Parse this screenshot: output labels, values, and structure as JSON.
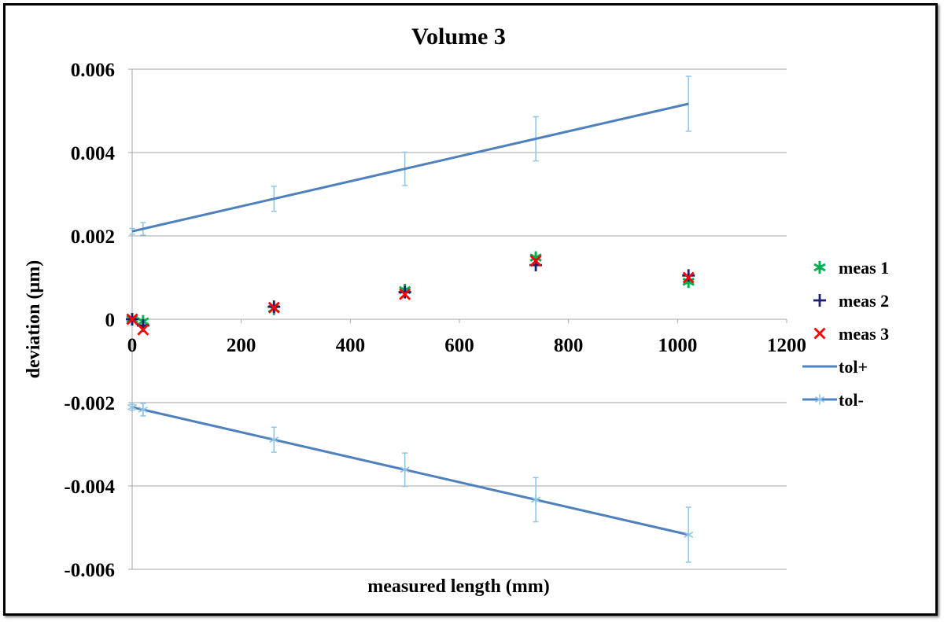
{
  "chart_data": {
    "type": "scatter",
    "title": "Volume 3",
    "xlabel": "measured length (mm)",
    "ylabel": "deviation (µm)",
    "xlim": [
      0,
      1200
    ],
    "ylim": [
      -0.006,
      0.006
    ],
    "x_ticks": [
      0,
      200,
      400,
      600,
      800,
      1000,
      1200
    ],
    "x_tick_labels": [
      "0",
      "200",
      "400",
      "600",
      "800",
      "1000",
      "1200"
    ],
    "y_ticks": [
      -0.006,
      -0.004,
      -0.002,
      0,
      0.002,
      0.004,
      0.006
    ],
    "y_tick_labels": [
      "-0.006",
      "-0.004",
      "-0.002",
      "0",
      "0.002",
      "0.004",
      "0.006"
    ],
    "grid": "horizontal",
    "legend_position": "right",
    "series": [
      {
        "name": "meas 1",
        "marker": "asterisk",
        "color": "#00b050",
        "x": [
          0,
          20,
          260,
          500,
          740,
          1020
        ],
        "y": [
          0.0,
          -5e-05,
          0.00025,
          0.0007,
          0.00148,
          0.0009
        ]
      },
      {
        "name": "meas 2",
        "marker": "plus",
        "color": "#1f1f6e",
        "x": [
          0,
          20,
          260,
          500,
          740,
          1020
        ],
        "y": [
          0.0,
          -0.00015,
          0.0003,
          0.00065,
          0.0013,
          0.00105
        ]
      },
      {
        "name": "meas 3",
        "marker": "x",
        "color": "#ff0000",
        "x": [
          0,
          20,
          260,
          500,
          740,
          1020
        ],
        "y": [
          0.0,
          -0.00025,
          0.00028,
          0.0006,
          0.0014,
          0.001
        ]
      },
      {
        "name": "tol+",
        "marker": "line",
        "color": "#4f81bd",
        "x": [
          0,
          20,
          260,
          500,
          740,
          1020
        ],
        "y": [
          0.00211,
          0.00217,
          0.00289,
          0.00361,
          0.00433,
          0.00517
        ],
        "error": [
          7e-05,
          0.00015,
          0.0003,
          0.0004,
          0.00053,
          0.00066
        ]
      },
      {
        "name": "tol-",
        "marker": "line-asterisk",
        "color": "#4f81bd",
        "marker_color": "#8fc4e8",
        "x": [
          0,
          20,
          260,
          500,
          740,
          1020
        ],
        "y": [
          -0.00211,
          -0.00217,
          -0.00289,
          -0.00361,
          -0.00433,
          -0.00517
        ],
        "error": [
          7e-05,
          0.00015,
          0.0003,
          0.0004,
          0.00053,
          0.00066
        ]
      }
    ],
    "error_bar_color": "#8fc4e8"
  }
}
